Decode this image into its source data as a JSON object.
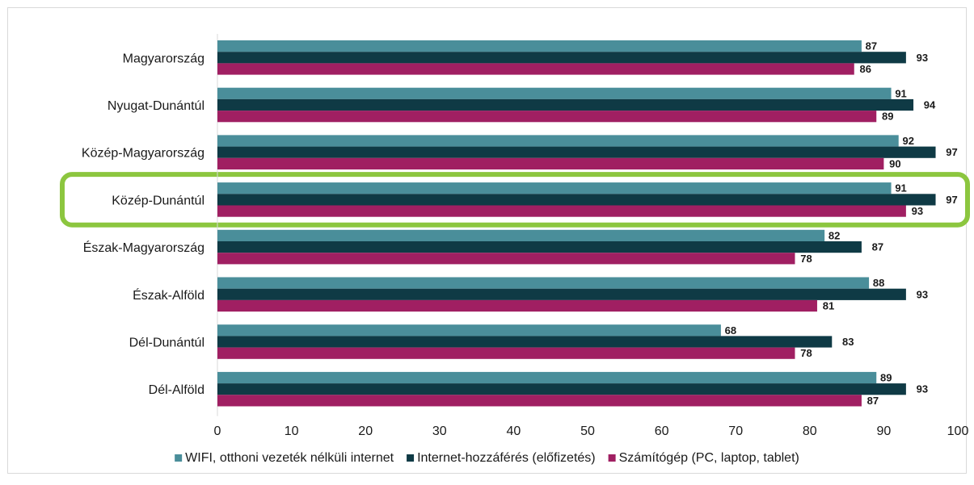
{
  "chart_data": {
    "type": "bar",
    "orientation": "horizontal",
    "categories": [
      "Magyarország",
      "Nyugat-Dunántúl",
      "Közép-Magyarország",
      "Közép-Dunántúl",
      "Észak-Magyarország",
      "Észak-Alföld",
      "Dél-Dunántúl",
      "Dél-Alföld"
    ],
    "series": [
      {
        "name": "WIFI, otthoni vezeték nélküli internet",
        "color": "#4a8e9a",
        "values": [
          87,
          91,
          92,
          91,
          82,
          88,
          68,
          89
        ]
      },
      {
        "name": "Internet-hozzáférés (előfizetés)",
        "color": "#0f3a45",
        "values": [
          93,
          94,
          97,
          97,
          87,
          93,
          83,
          93
        ]
      },
      {
        "name": "Számítógép (PC, laptop, tablet)",
        "color": "#a01f62",
        "values": [
          86,
          89,
          90,
          93,
          78,
          81,
          78,
          87
        ]
      }
    ],
    "xlim": [
      0,
      100
    ],
    "xticks": [
      "0",
      "10",
      "20",
      "30",
      "40",
      "50",
      "60",
      "70",
      "80",
      "90",
      "100"
    ],
    "highlighted_category": "Közép-Dunántúl",
    "highlight_color": "#8cc63f",
    "legend_position": "bottom",
    "grid": false
  }
}
